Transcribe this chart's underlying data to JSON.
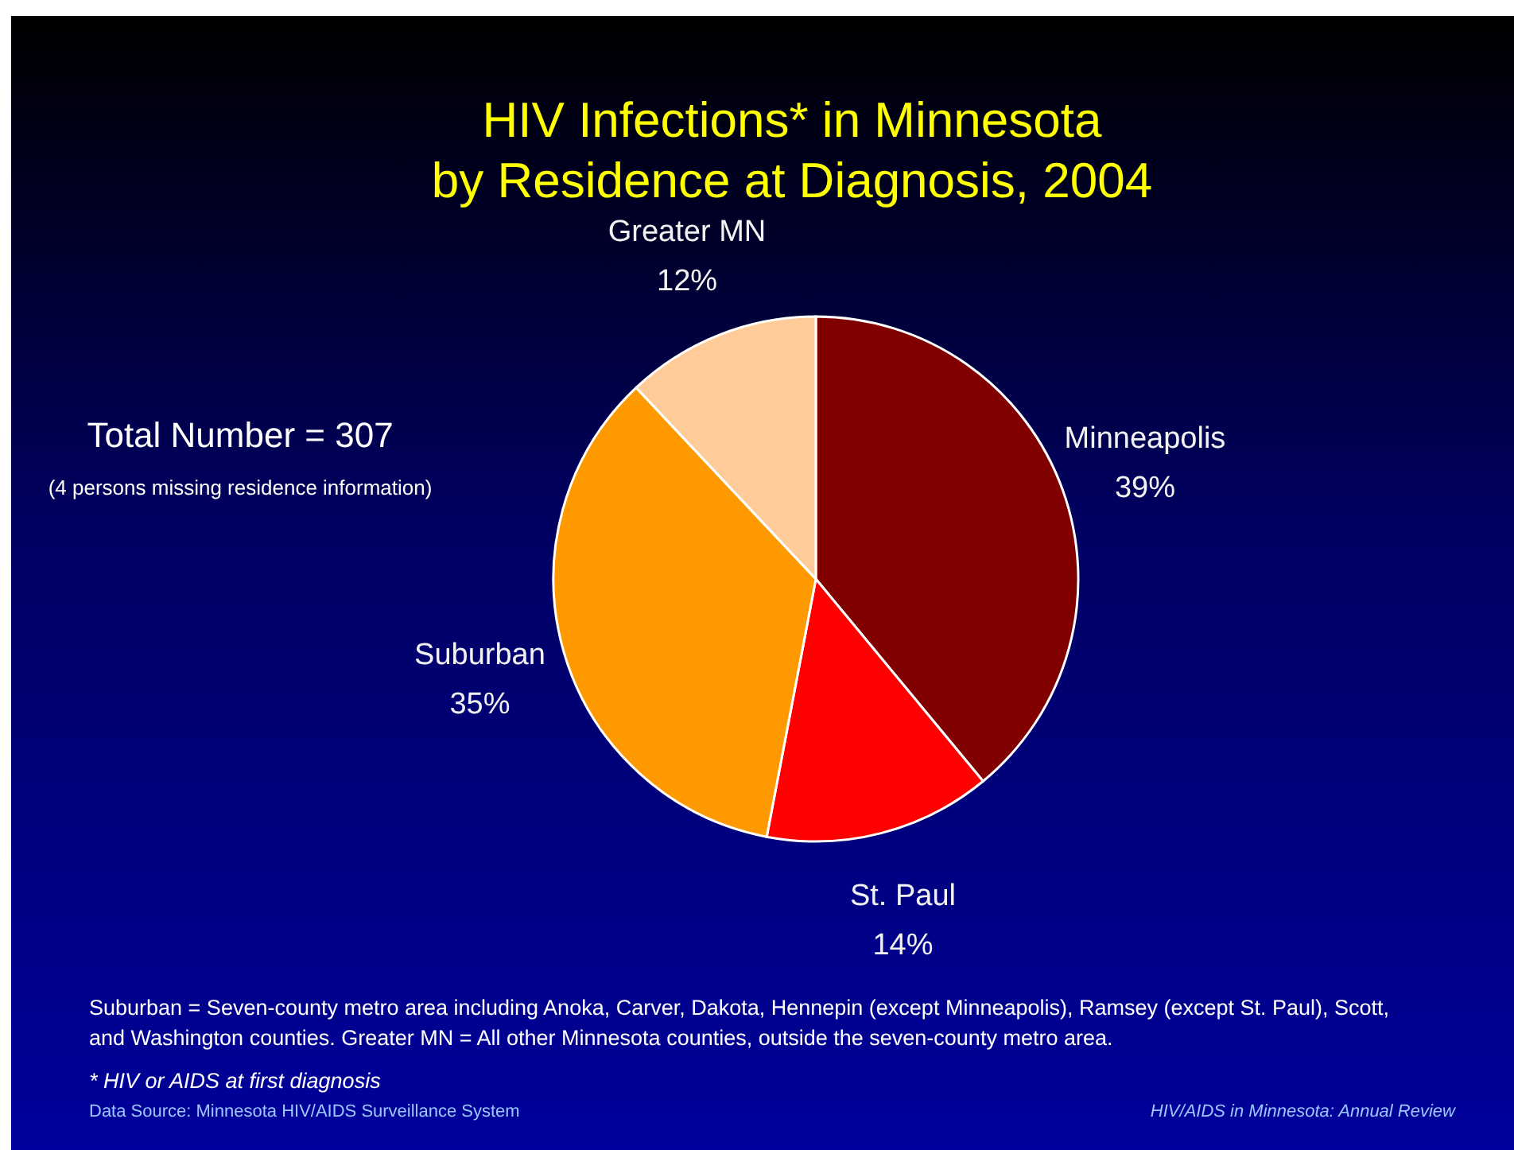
{
  "chart_data": {
    "type": "pie",
    "title": "HIV Infections* in Minnesota\nby Residence at Diagnosis, 2004",
    "categories": [
      "Minneapolis",
      "St. Paul",
      "Suburban",
      "Greater MN"
    ],
    "values": [
      39,
      14,
      35,
      12
    ],
    "colors": [
      "#800000",
      "#ff0000",
      "#ff9900",
      "#ffcc99"
    ],
    "value_labels": [
      "39%",
      "14%",
      "35%",
      "12%"
    ],
    "annotations": [
      "Total Number = 307",
      "(4 persons missing residence information)",
      "Suburban = Seven-county metro area including Anoka, Carver, Dakota, Hennepin (except Minneapolis), Ramsey (except St. Paul), Scott,\nand Washington counties.  Greater MN = All other Minnesota counties, outside the seven-county metro area.",
      "* HIV or AIDS at first diagnosis",
      "Data Source: Minnesota HIV/AIDS Surveillance System",
      "HIV/AIDS in Minnesota: Annual Review"
    ]
  }
}
